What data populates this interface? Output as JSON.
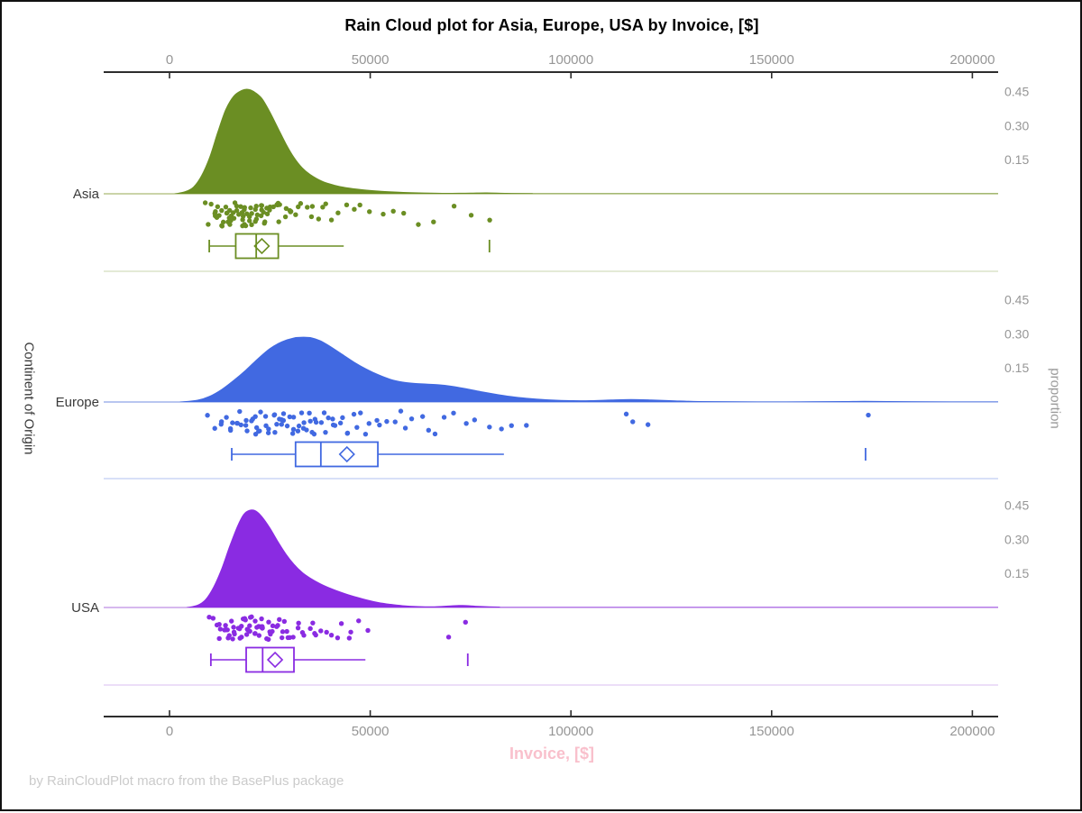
{
  "title": "Rain Cloud plot for Asia, Europe, USA by Invoice, [$]",
  "footer": "by RainCloudPlot macro from the BasePlus package",
  "axes": {
    "x_label": "Invoice, [$]",
    "y_left_label": "Continent of Origin",
    "y_right_label": "proportion",
    "x_ticks": [
      "0",
      "50000",
      "100000",
      "150000",
      "200000"
    ],
    "x_tick_values": [
      0,
      50000,
      100000,
      150000,
      200000
    ],
    "proportion_ticks": [
      "0.45",
      "0.30",
      "0.15"
    ],
    "proportion_tick_values": [
      0.45,
      0.3,
      0.15
    ]
  },
  "colors": {
    "title": "#000000",
    "x_label_pink": "#f9c0cc",
    "footer_gray": "#cbcbcb",
    "axis_line": "#2d2d2d",
    "tick_label_gray": "#969696",
    "category_label": "#3a3a3a",
    "right_axis_label_gray": "#9a9a9a",
    "asia": "#6B8E23",
    "europe": "#4169E1",
    "usa": "#8A2BE2"
  },
  "chart_data": {
    "type": "raincloud",
    "title": "Rain Cloud plot for Asia, Europe, USA by Invoice, [$]",
    "xlabel": "Invoice, [$]",
    "ylabel": "Continent of Origin",
    "y2label": "proportion",
    "xlim": [
      -16000,
      207000
    ],
    "x_ticks": [
      0,
      50000,
      100000,
      150000,
      200000
    ],
    "proportion_ticks": [
      0.45,
      0.3,
      0.15
    ],
    "groups": [
      {
        "label": "Asia",
        "color": "#6B8E23",
        "baseline_color": "#b9c68c",
        "separator_color": "#dce3c9",
        "density": {
          "x": [
            1500,
            4000,
            6000,
            8000,
            10000,
            12000,
            14000,
            16000,
            18000,
            19500,
            21000,
            23000,
            25000,
            27000,
            29000,
            31000,
            33000,
            35000,
            38000,
            41000,
            44000,
            48000,
            52000,
            56000,
            60000,
            65000,
            70000,
            75000,
            79000,
            84000,
            90000,
            100000,
            207000
          ],
          "y": [
            0,
            0.01,
            0.03,
            0.08,
            0.16,
            0.27,
            0.37,
            0.43,
            0.455,
            0.46,
            0.45,
            0.42,
            0.36,
            0.29,
            0.22,
            0.16,
            0.115,
            0.085,
            0.055,
            0.038,
            0.027,
            0.018,
            0.012,
            0.008,
            0.005,
            0.003,
            0.002,
            0.003,
            0.004,
            0.002,
            0.001,
            0,
            0
          ]
        },
        "box": {
          "whisker_low": 9900,
          "q1": 16500,
          "median": 21600,
          "mean": 23000,
          "q3": 27100,
          "whisker_high": 43400,
          "outliers": [
            79700
          ]
        },
        "points": [
          9600,
          10100,
          10400,
          10900,
          11200,
          11400,
          11800,
          12100,
          12300,
          12600,
          12900,
          13200,
          13400,
          13700,
          13900,
          14100,
          14400,
          14600,
          14900,
          15100,
          15300,
          15600,
          15800,
          16000,
          16200,
          16500,
          16700,
          16900,
          17100,
          17400,
          17600,
          17800,
          18100,
          18300,
          18600,
          18800,
          19000,
          19200,
          19500,
          19700,
          20000,
          20200,
          20500,
          20700,
          21000,
          21200,
          21500,
          21800,
          22000,
          22300,
          22600,
          22900,
          23200,
          23500,
          23800,
          24100,
          24500,
          24800,
          25200,
          25500,
          25900,
          26300,
          26700,
          27100,
          27600,
          28000,
          28500,
          29000,
          29600,
          30200,
          30800,
          31500,
          32200,
          33000,
          33900,
          34800,
          35800,
          36900,
          38100,
          39400,
          40800,
          42400,
          44100,
          46000,
          48100,
          50400,
          53000,
          55800,
          59000,
          62500,
          66400,
          70700,
          75500,
          79700
        ]
      },
      {
        "label": "Europe",
        "color": "#4169E1",
        "baseline_color": "#a0b4ec",
        "separator_color": "#ccd6f5",
        "density": {
          "x": [
            3000,
            7000,
            10000,
            13000,
            16000,
            19000,
            22000,
            25000,
            28000,
            31000,
            33500,
            35500,
            37500,
            40000,
            43000,
            46000,
            49000,
            52000,
            55000,
            58000,
            61000,
            64000,
            67000,
            70000,
            74000,
            78000,
            82000,
            86000,
            90000,
            95000,
            100000,
            105000,
            110000,
            115000,
            120000,
            126000,
            132000,
            140000,
            150000,
            160000,
            168000,
            173000,
            179000,
            186000,
            195000,
            207000
          ],
          "y": [
            0,
            0.008,
            0.025,
            0.055,
            0.095,
            0.14,
            0.19,
            0.235,
            0.265,
            0.282,
            0.285,
            0.282,
            0.27,
            0.245,
            0.21,
            0.175,
            0.145,
            0.12,
            0.1,
            0.088,
            0.082,
            0.079,
            0.076,
            0.07,
            0.058,
            0.044,
            0.032,
            0.022,
            0.015,
            0.009,
            0.006,
            0.006,
            0.009,
            0.011,
            0.009,
            0.005,
            0.002,
            0.001,
            0,
            0.001,
            0.002,
            0.003,
            0.002,
            0.001,
            0,
            0
          ]
        },
        "box": {
          "whisker_low": 15500,
          "q1": 31400,
          "median": 37700,
          "mean": 44200,
          "q3": 51900,
          "whisker_high": 83300,
          "outliers": [
            173400
          ]
        },
        "points": [
          9800,
          11500,
          12800,
          13600,
          14200,
          14900,
          15500,
          16000,
          16600,
          17100,
          17700,
          18200,
          18700,
          19200,
          19600,
          20100,
          20500,
          21000,
          21400,
          21900,
          22300,
          22800,
          23200,
          23700,
          24100,
          24600,
          25000,
          25500,
          25900,
          26400,
          26800,
          27300,
          27700,
          28200,
          28600,
          29100,
          29500,
          30000,
          30400,
          30900,
          31300,
          31800,
          32200,
          32700,
          33100,
          33600,
          34000,
          34500,
          34900,
          35400,
          35900,
          36400,
          36900,
          37500,
          38100,
          38700,
          39300,
          40000,
          40700,
          41400,
          42200,
          43000,
          43900,
          44800,
          45800,
          46800,
          47900,
          49000,
          50200,
          51500,
          52800,
          54200,
          55700,
          57300,
          59000,
          60800,
          62700,
          64700,
          66800,
          69000,
          71400,
          73900,
          76500,
          79300,
          82200,
          85300,
          88500,
          113800,
          115900,
          119500,
          173400
        ]
      },
      {
        "label": "USA",
        "color": "#8A2BE2",
        "baseline_color": "#c9a0e8",
        "separator_color": "#e5d4f5",
        "density": {
          "x": [
            4500,
            7000,
            9000,
            11000,
            13000,
            15000,
            17000,
            18500,
            20000,
            21500,
            23000,
            25000,
            27000,
            29000,
            31000,
            33000,
            35000,
            37500,
            40000,
            43000,
            46000,
            49000,
            52000,
            55000,
            58000,
            62000,
            66000,
            70000,
            73000,
            77000,
            82000,
            90000,
            207000
          ],
          "y": [
            0,
            0.01,
            0.035,
            0.09,
            0.17,
            0.27,
            0.36,
            0.41,
            0.428,
            0.425,
            0.4,
            0.35,
            0.29,
            0.235,
            0.19,
            0.155,
            0.13,
            0.105,
            0.085,
            0.065,
            0.048,
            0.034,
            0.022,
            0.014,
            0.008,
            0.004,
            0.003,
            0.007,
            0.009,
            0.005,
            0.002,
            0,
            0
          ]
        },
        "box": {
          "whisker_low": 10300,
          "q1": 19100,
          "median": 23200,
          "mean": 26300,
          "q3": 31000,
          "whisker_high": 48800,
          "outliers": [
            74300
          ]
        },
        "points": [
          10300,
          11000,
          11600,
          12100,
          12500,
          12900,
          13300,
          13600,
          14000,
          14300,
          14600,
          14900,
          15200,
          15500,
          15800,
          16100,
          16300,
          16600,
          16900,
          17100,
          17400,
          17600,
          17900,
          18100,
          18400,
          18600,
          18900,
          19100,
          19400,
          19600,
          19900,
          20100,
          20400,
          20600,
          20900,
          21100,
          21400,
          21700,
          21900,
          22200,
          22500,
          22800,
          23100,
          23400,
          23700,
          24000,
          24300,
          24600,
          25000,
          25300,
          25700,
          26100,
          26500,
          26900,
          27300,
          27800,
          28200,
          28700,
          29200,
          29800,
          30300,
          30900,
          31500,
          32200,
          32900,
          33600,
          34400,
          35200,
          36100,
          37000,
          38000,
          39100,
          40200,
          41400,
          42700,
          44100,
          45600,
          47200,
          48900,
          69500,
          74300
        ]
      }
    ]
  }
}
